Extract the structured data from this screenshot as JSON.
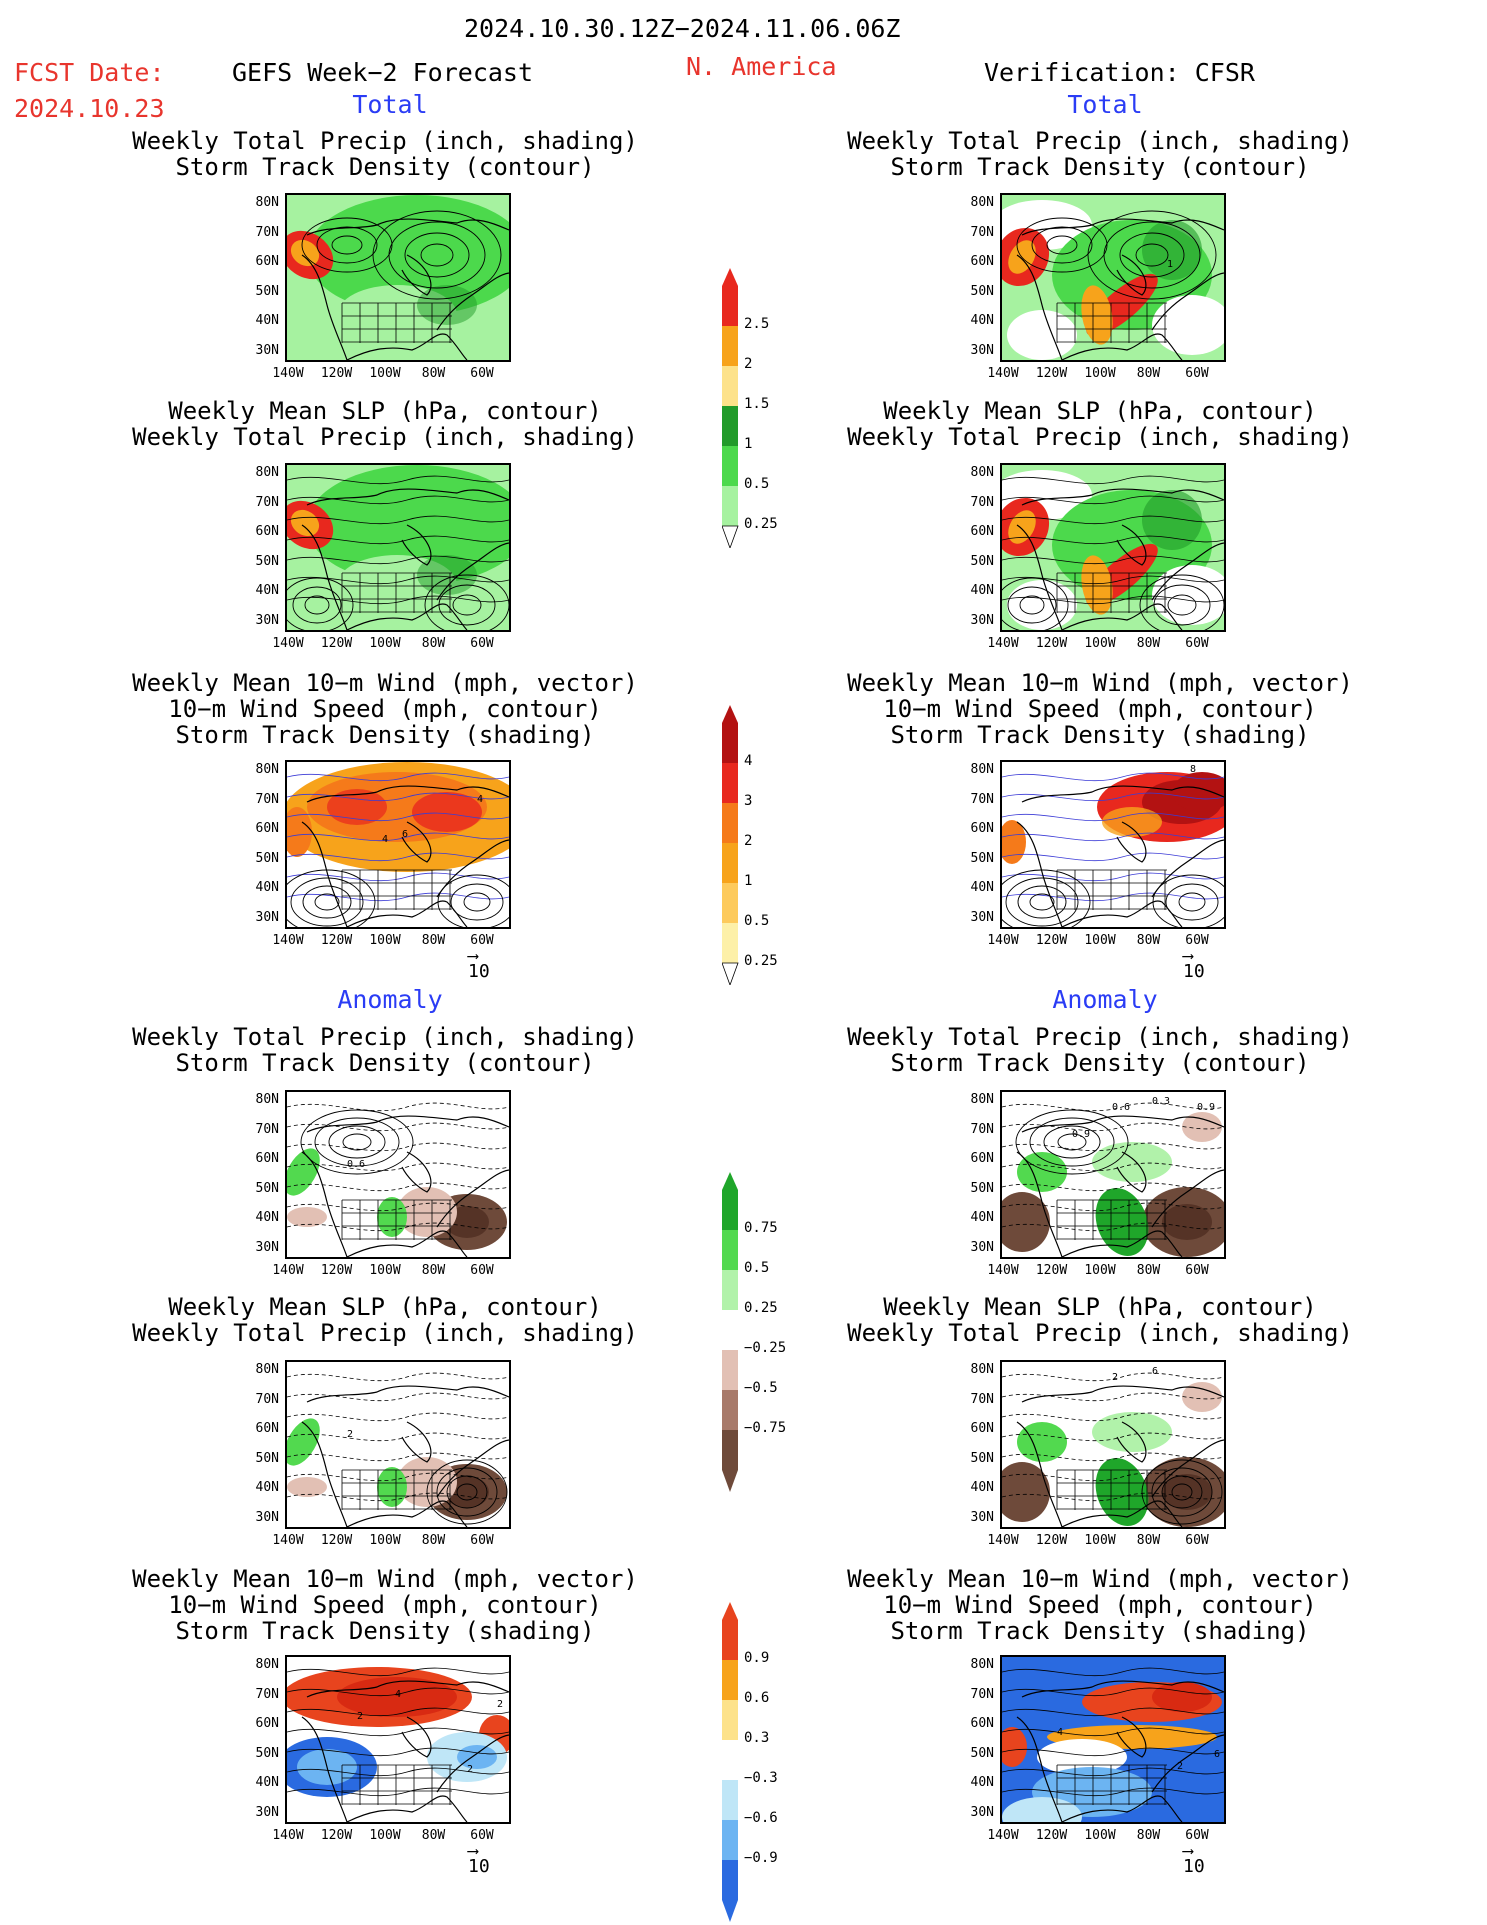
{
  "header": {
    "date_range": "2024.10.30.12Z−2024.11.06.06Z",
    "fcst_label": "FCST Date:",
    "fcst_date": "2024.10.23",
    "left_model": "GEFS Week−2 Forecast",
    "region": "N. America",
    "right_model": "Verification: CFSR"
  },
  "sections": {
    "total": "Total",
    "anomaly": "Anomaly"
  },
  "titles": {
    "precip_track": "Weekly Total Precip (inch, shading)\nStorm Track Density (contour)",
    "slp_precip": "Weekly Mean SLP (hPa, contour)\nWeekly Total Precip (inch, shading)",
    "wind_track": "Weekly Mean 10−m Wind (mph, vector)\n10−m Wind Speed (mph, contour)\nStorm Track Density (shading)"
  },
  "axes": {
    "lat_ticks": [
      "80N",
      "70N",
      "60N",
      "50N",
      "40N",
      "30N"
    ],
    "lon_ticks": [
      "140W",
      "120W",
      "100W",
      "80W",
      "60W"
    ]
  },
  "vector_ref": "10",
  "colorbars": {
    "precip_total": {
      "labels": [
        "2.5",
        "2",
        "1.5",
        "1",
        "0.5",
        "0.25"
      ],
      "colors": [
        "#e8281e",
        "#f7a31b",
        "#fde28a",
        "#229b2a",
        "#4cd94c",
        "#a6f2a0"
      ]
    },
    "track_total": {
      "labels": [
        "4",
        "3",
        "2",
        "1",
        "0.5",
        "0.25"
      ],
      "colors": [
        "#b31212",
        "#e8281e",
        "#f57a1a",
        "#f7a31b",
        "#fdca5c",
        "#fdf0a8"
      ]
    },
    "precip_anom": {
      "labels": [
        "0.75",
        "0.5",
        "0.25",
        "−0.25",
        "−0.5",
        "−0.75"
      ],
      "colors": [
        "#1fa62a",
        "#52d94f",
        "#b1f2aa",
        "#ffffff",
        "#e2c0b4",
        "#a87a6a",
        "#6e4a3a"
      ]
    },
    "track_anom": {
      "labels": [
        "0.9",
        "0.6",
        "0.3",
        "−0.3",
        "−0.6",
        "−0.9"
      ],
      "colors": [
        "#e8441e",
        "#f7a31b",
        "#fde28a",
        "#ffffff",
        "#bfe6f7",
        "#6cb4f2",
        "#2a6ae0"
      ]
    }
  },
  "contour_labels": {
    "fc_track_total": [
      "4",
      "6",
      "4"
    ],
    "obs_precip_total": [
      "1"
    ],
    "obs_track_total": [
      "8"
    ],
    "fc_precip_anom": [
      "0.6"
    ],
    "obs_precip_anom": [
      "0.3",
      "0.6",
      "0.9",
      "0.9"
    ],
    "fc_slp_anom": [
      "2"
    ],
    "obs_slp_anom": [
      "6",
      "2"
    ],
    "fc_track_anom": [
      "4",
      "2",
      "2",
      "2"
    ],
    "obs_track_anom": [
      "4",
      "2",
      "6"
    ]
  }
}
